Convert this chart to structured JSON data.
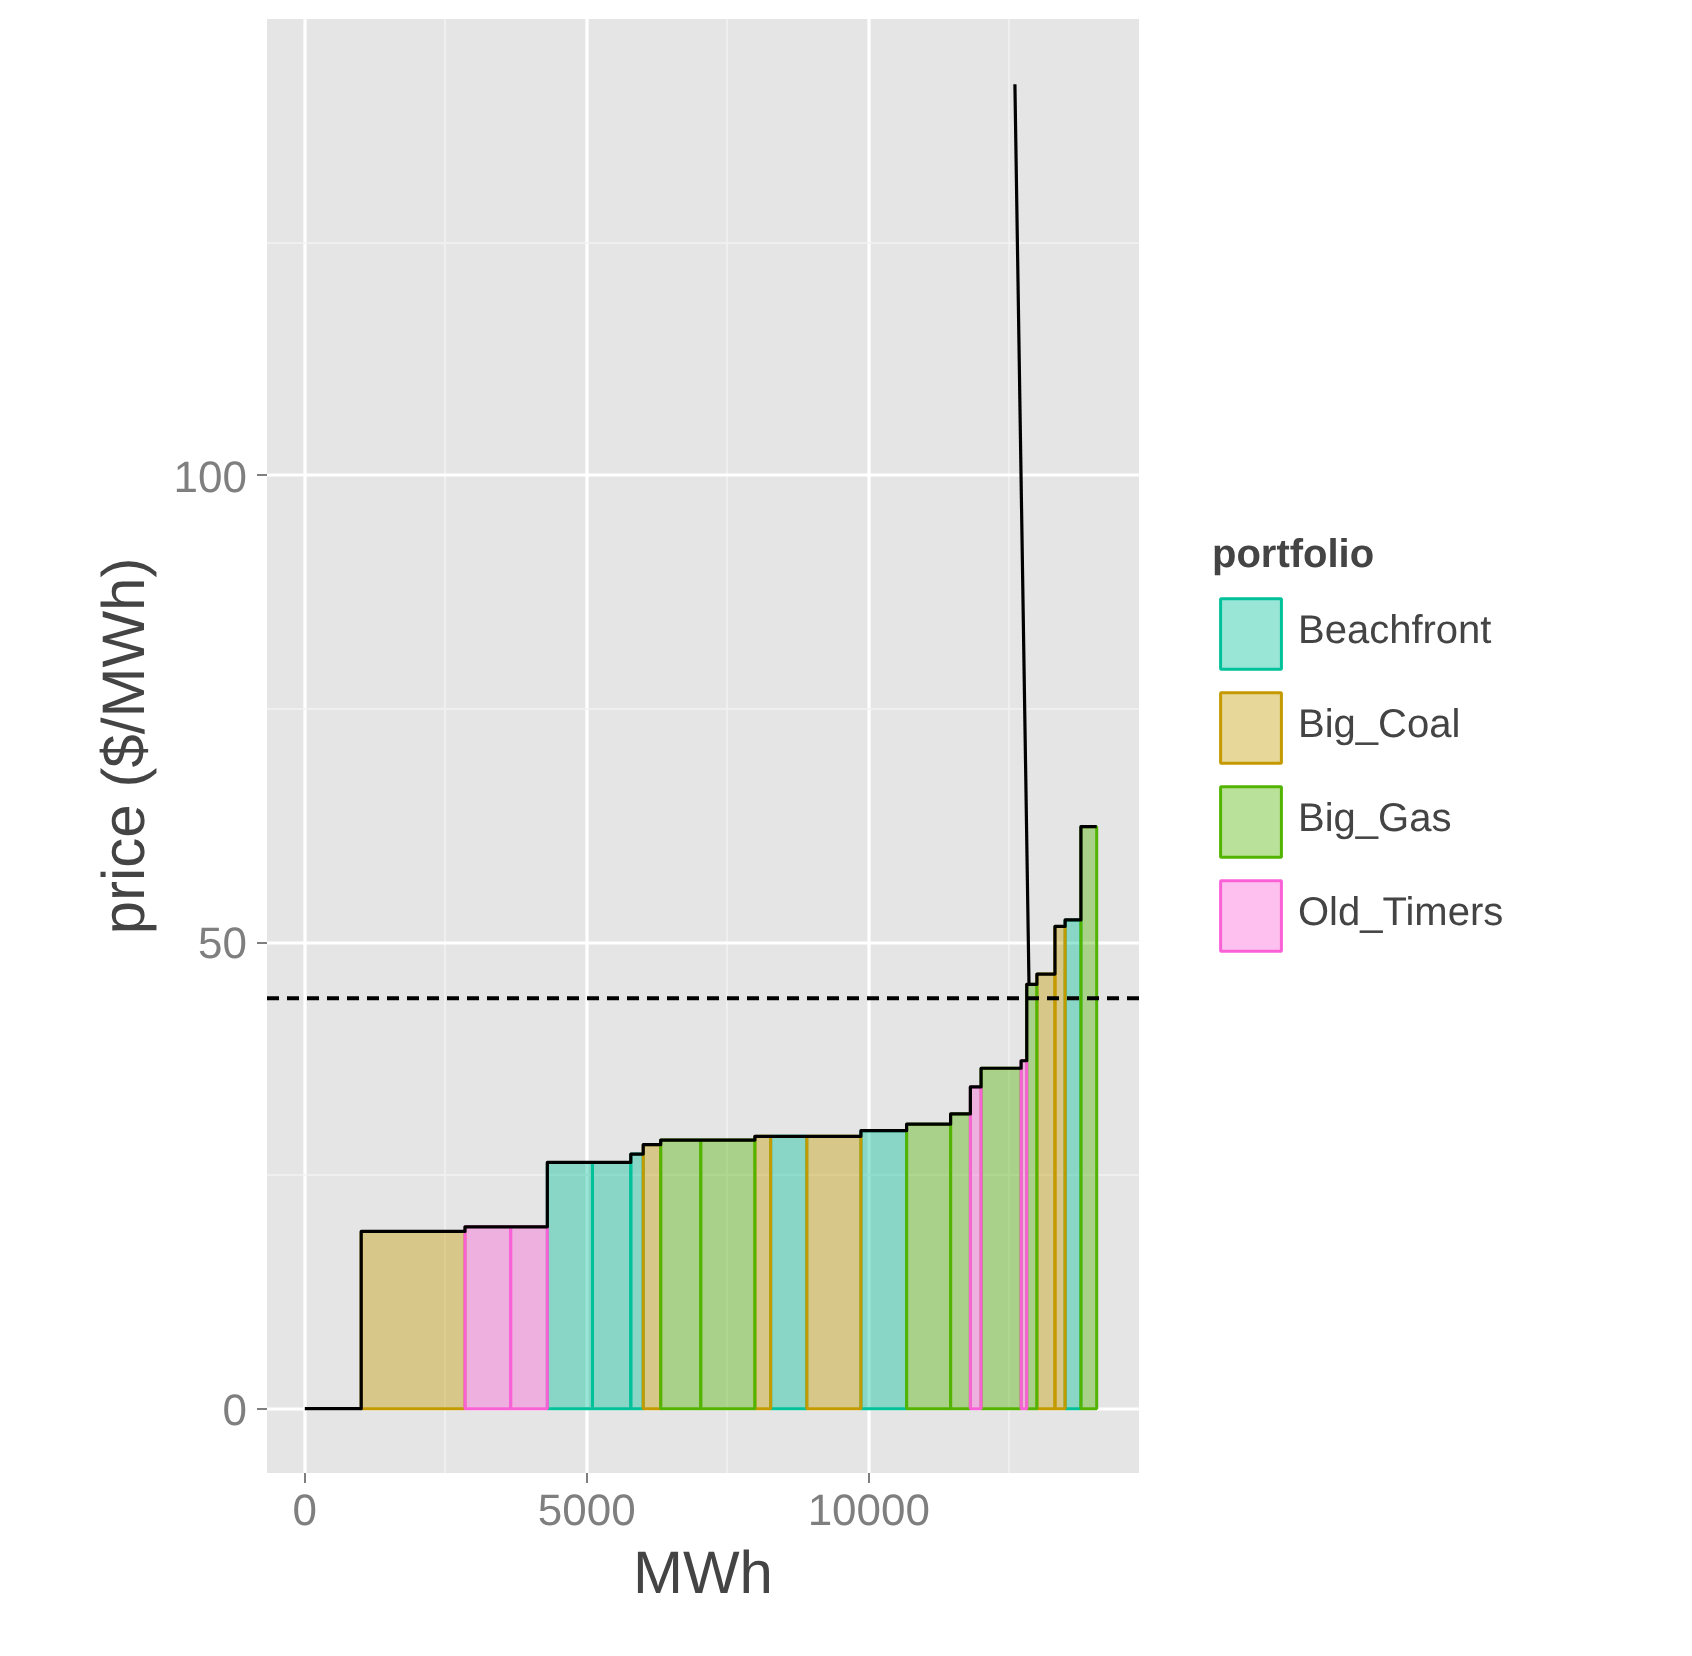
{
  "chart_data": {
    "type": "histogram",
    "xlabel": "MWh",
    "ylabel": "price ($/MWh)",
    "legend_title": "portfolio",
    "legend": "right",
    "grid": true,
    "bins": [
      1000,
      2840,
      3650,
      4300,
      5100,
      5780,
      6000,
      6310,
      7020,
      7980,
      8260,
      8900,
      9860,
      10670,
      11450,
      11800,
      11990,
      12700,
      12800,
      12980,
      13300,
      13480,
      13760,
      14040
    ],
    "series": [
      {
        "name": "Beachfront",
        "color": "#00c19a",
        "values": [
          null,
          null,
          null,
          26.4,
          26.4,
          27.3,
          null,
          null,
          null,
          null,
          29.2,
          null,
          29.8,
          null,
          null,
          null,
          null,
          null,
          null,
          null,
          null,
          52.4,
          null
        ]
      },
      {
        "name": "Big_Coal",
        "color": "#c49a00",
        "values": [
          19,
          null,
          null,
          null,
          null,
          null,
          28.3,
          null,
          null,
          29.2,
          null,
          29.2,
          null,
          null,
          null,
          null,
          null,
          null,
          null,
          46.6,
          51.7,
          null,
          null
        ]
      },
      {
        "name": "Big_Gas",
        "color": "#53b400",
        "values": [
          null,
          null,
          null,
          null,
          null,
          null,
          null,
          28.8,
          28.8,
          null,
          null,
          null,
          null,
          30.5,
          31.6,
          null,
          36.5,
          null,
          45.5,
          null,
          null,
          null,
          62.4
        ]
      },
      {
        "name": "Old_Timers",
        "color": "#fb61d7",
        "values": [
          null,
          19.5,
          19.5,
          null,
          null,
          null,
          null,
          null,
          null,
          null,
          null,
          null,
          null,
          null,
          null,
          34.5,
          null,
          37.3,
          null,
          null,
          null,
          null,
          null
        ]
      },
      {
        "type": "step",
        "color": "#000000",
        "x": [
          0,
          1000,
          2840,
          3650,
          4300,
          5100,
          5780,
          6000,
          6310,
          7020,
          7980,
          8260,
          8900,
          9860,
          10670,
          11450,
          11800,
          11990,
          12700,
          12800,
          12980,
          13300,
          13480,
          13760,
          14040
        ],
        "values": [
          0,
          19,
          19.5,
          19.5,
          26.4,
          26.4,
          27.3,
          28.3,
          28.8,
          28.8,
          29.2,
          29.2,
          29.2,
          29.8,
          30.5,
          31.6,
          34.5,
          36.5,
          37.3,
          45.5,
          46.6,
          51.7,
          52.4,
          62.4,
          62.4
        ]
      },
      {
        "type": "line",
        "color": "#000000",
        "x": [
          12590,
          12840
        ],
        "values": [
          142,
          45.5
        ]
      }
    ],
    "ref_lines": [
      {
        "axis": "y",
        "value": 44,
        "line_style": "dashed",
        "color": "#000000"
      }
    ],
    "xlim": [
      -670,
      14790
    ],
    "ylim": [
      -6.9,
      149
    ],
    "xticks": [
      0,
      5000,
      10000
    ],
    "yticks": [
      0,
      50,
      100
    ]
  }
}
